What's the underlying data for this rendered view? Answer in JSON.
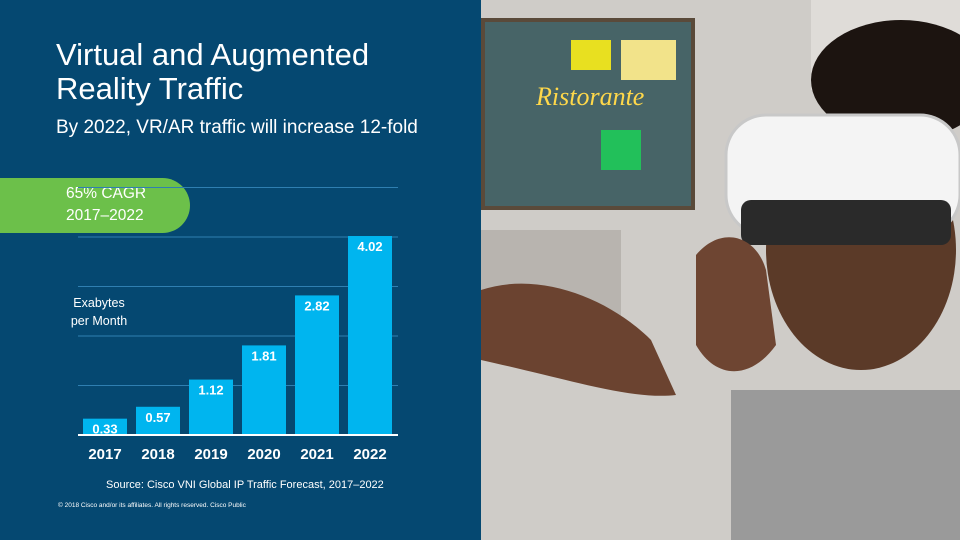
{
  "slide": {
    "title": "Virtual and Augmented Reality Traffic",
    "subtitle": "By 2022, VR/AR traffic will increase 12-fold",
    "cagr_line1": "65% CAGR",
    "cagr_line2": "2017–2022",
    "source": "Source:  Cisco VNI Global IP Traffic Forecast, 2017–2022",
    "copyright": "© 2018  Cisco  and/or  its affiliates.   All rights  reserved.   Cisco  Public"
  },
  "chart_data": {
    "type": "bar",
    "categories": [
      "2017",
      "2018",
      "2019",
      "2020",
      "2021",
      "2022"
    ],
    "values": [
      0.33,
      0.57,
      1.12,
      1.81,
      2.82,
      4.02
    ],
    "value_labels": [
      "0.33",
      "0.57",
      "1.12",
      "1.81",
      "2.82",
      "4.02"
    ],
    "ylabel_line1": "Exabytes",
    "ylabel_line2": "per Month",
    "ylim": [
      0,
      5
    ],
    "grid": true,
    "bar_color": "#00b5ef",
    "grid_color": "#2f7fb1"
  },
  "photo": {
    "icon": "vr-headset-photo-icon",
    "hologram_text": "Ristorante"
  },
  "colors": {
    "panel": "#054871",
    "cagr": "#6cc04a",
    "text": "#ffffff"
  }
}
